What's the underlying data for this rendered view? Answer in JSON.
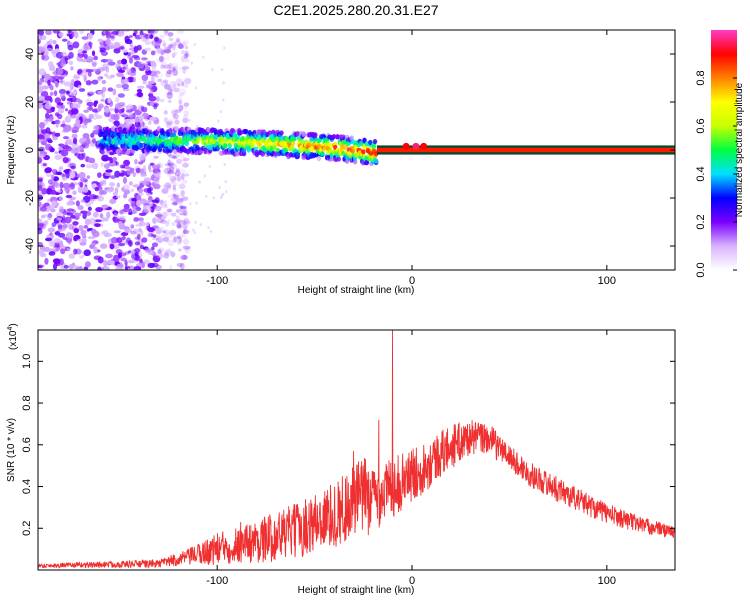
{
  "chart_data": [
    {
      "type": "heatmap",
      "title": "C2E1.2025.280.20.31.E27",
      "xlabel": "Height of straight line (km)",
      "ylabel": "Frequency (Hz)",
      "xlim": [
        -192,
        135
      ],
      "ylim": [
        -50,
        50
      ],
      "xticks": [
        -100,
        0,
        100
      ],
      "xtick_labels": [
        "-100",
        "0",
        "100"
      ],
      "yticks": [
        -40,
        -20,
        0,
        20,
        40
      ],
      "ytick_labels": [
        "-40",
        "-20",
        "0",
        "20",
        "40"
      ],
      "colorbar": {
        "label": "Normalized spectral amplitude",
        "range": [
          0,
          1
        ],
        "ticks": [
          0.0,
          0.2,
          0.4,
          0.6,
          0.8
        ],
        "tick_labels": [
          "0.0",
          "0.2",
          "0.4",
          "0.6",
          "0.8"
        ],
        "colormap": [
          "#ffffff",
          "#d8b4ff",
          "#7a00ff",
          "#0000ff",
          "#00e0ff",
          "#00ff40",
          "#c8ff00",
          "#ffff00",
          "#ff8000",
          "#ff0000",
          "#ff3cc8"
        ]
      },
      "ridge": {
        "x": [
          -120,
          -100,
          -80,
          -60,
          -40,
          -20,
          0,
          10,
          135
        ],
        "y": [
          4,
          3.5,
          3,
          2,
          1,
          -1,
          0,
          0,
          0
        ]
      },
      "noise_region_x": [
        -192,
        -115
      ],
      "solid_band": {
        "x": [
          -18,
          135
        ],
        "y_center": 0,
        "half_width": 1.5
      }
    },
    {
      "type": "line",
      "xlabel": "Height of straight line (km)",
      "ylabel": "SNR (10 * v/v)",
      "y_exponent_label": "(x10",
      "y_exponent_power": "4",
      "y_exponent_close": ")",
      "xlim": [
        -192,
        135
      ],
      "ylim": [
        0,
        1.15
      ],
      "xticks": [
        -100,
        0,
        100
      ],
      "xtick_labels": [
        "-100",
        "0",
        "100"
      ],
      "yticks": [
        0.2,
        0.4,
        0.6,
        0.8,
        1.0
      ],
      "ytick_labels": [
        "0.2",
        "0.4",
        "0.6",
        "0.8",
        "1.0"
      ],
      "line_color": "#f03030",
      "series": [
        {
          "name": "SNR envelope",
          "x": [
            -192,
            -160,
            -130,
            -115,
            -100,
            -80,
            -60,
            -40,
            -25,
            -20,
            -10,
            0,
            10,
            20,
            30,
            40,
            50,
            60,
            80,
            100,
            120,
            135
          ],
          "upper": [
            0.03,
            0.04,
            0.05,
            0.1,
            0.18,
            0.24,
            0.32,
            0.42,
            0.55,
            0.5,
            0.54,
            0.58,
            0.64,
            0.7,
            0.72,
            0.7,
            0.6,
            0.52,
            0.42,
            0.32,
            0.25,
            0.21
          ],
          "lower": [
            0.01,
            0.01,
            0.01,
            0.02,
            0.02,
            0.03,
            0.05,
            0.1,
            0.15,
            0.18,
            0.25,
            0.32,
            0.4,
            0.48,
            0.55,
            0.55,
            0.48,
            0.4,
            0.3,
            0.22,
            0.17,
            0.15
          ]
        }
      ],
      "spikes": [
        {
          "x": -10,
          "y": 1.15
        },
        {
          "x": -17,
          "y": 0.72
        },
        {
          "x": -30,
          "y": 0.57
        },
        {
          "x": -88,
          "y": 0.23
        }
      ]
    }
  ]
}
